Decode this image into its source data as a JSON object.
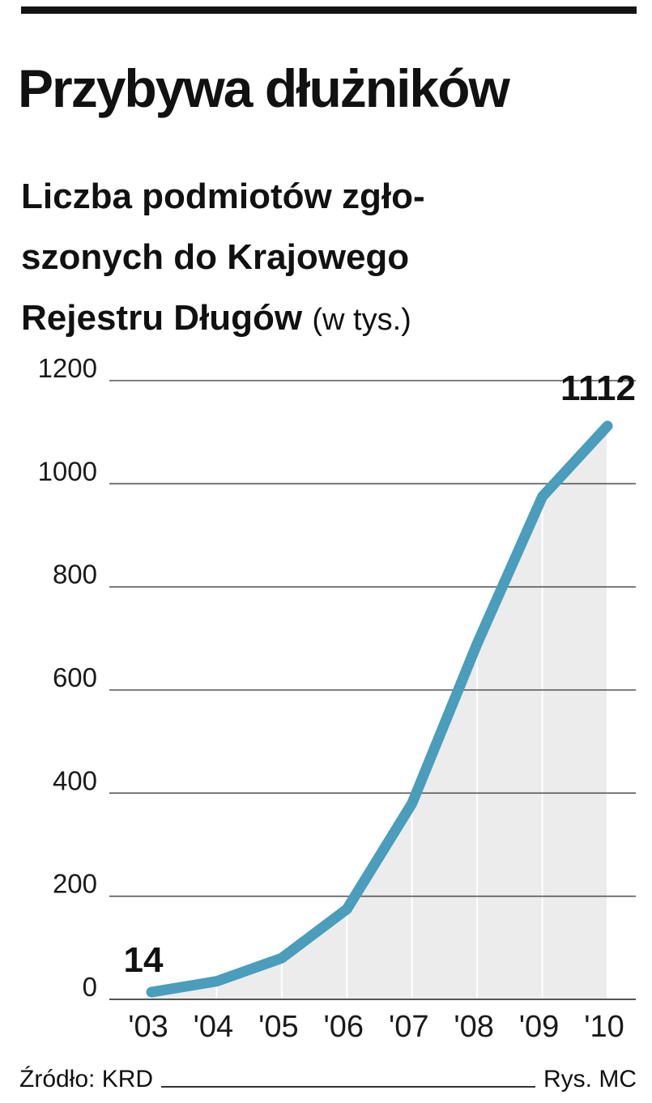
{
  "header": {
    "title": "Przybywa dłużników",
    "subtitle_lines": [
      "Liczba podmiotów zgło-",
      "szonych do Krajowego",
      "Rejestru Długów"
    ],
    "unit": "(w tys.)"
  },
  "chart_data": {
    "type": "area",
    "x": [
      "'03",
      "'04",
      "'05",
      "'06",
      "'07",
      "'08",
      "'09",
      "'10"
    ],
    "series": [
      {
        "values": [
          14,
          35,
          80,
          175,
          380,
          690,
          975,
          1112
        ]
      }
    ],
    "ylim": [
      0,
      1200
    ],
    "yticks": [
      0,
      200,
      400,
      600,
      800,
      1000,
      1200
    ],
    "grid": true,
    "data_labels": [
      {
        "x": "'03",
        "text": "14"
      },
      {
        "x": "'10",
        "text": "1112"
      }
    ],
    "colors": {
      "line": "#4a9dbb",
      "fill": "#ececec",
      "grid": "#555555"
    }
  },
  "footer": {
    "source": "Źródło: KRD",
    "credit": "Rys. MC"
  }
}
